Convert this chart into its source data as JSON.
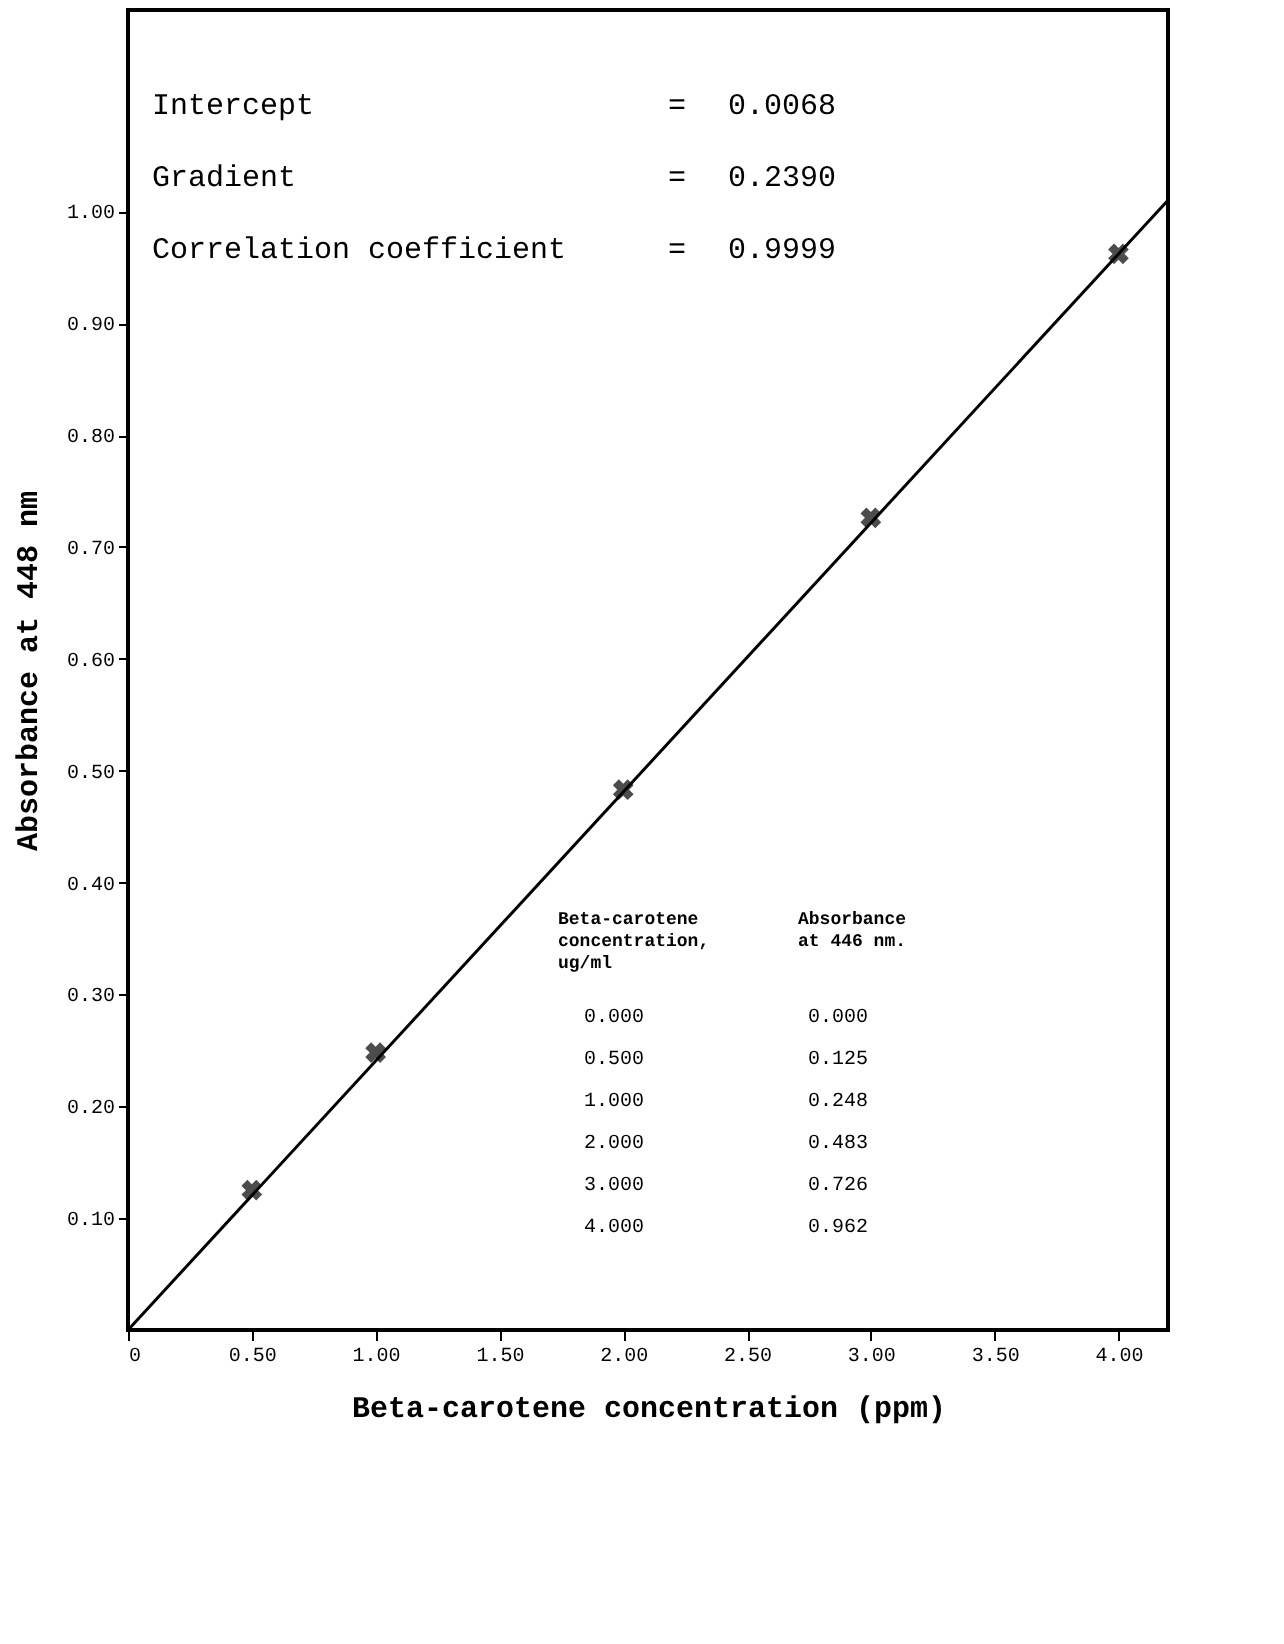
{
  "chart_data": {
    "type": "scatter",
    "xlabel": "Beta-carotene concentration (ppm)",
    "ylabel": "Absorbance at 448 nm",
    "xlim": [
      0,
      4.2
    ],
    "ylim": [
      0,
      1.18
    ],
    "xticks": [
      {
        "value": 0,
        "label": "0"
      },
      {
        "value": 0.5,
        "label": "0.50"
      },
      {
        "value": 1,
        "label": "1.00"
      },
      {
        "value": 1.5,
        "label": "1.50"
      },
      {
        "value": 2,
        "label": "2.00"
      },
      {
        "value": 2.5,
        "label": "2.50"
      },
      {
        "value": 3,
        "label": "3.00"
      },
      {
        "value": 3.5,
        "label": "3.50"
      },
      {
        "value": 4,
        "label": "4.00"
      }
    ],
    "yticks": [
      {
        "value": 0.1,
        "label": "0.10"
      },
      {
        "value": 0.2,
        "label": "0.20"
      },
      {
        "value": 0.3,
        "label": "0.30"
      },
      {
        "value": 0.4,
        "label": "0.40"
      },
      {
        "value": 0.5,
        "label": "0.50"
      },
      {
        "value": 0.6,
        "label": "0.60"
      },
      {
        "value": 0.7,
        "label": "0.70"
      },
      {
        "value": 0.8,
        "label": "0.80"
      },
      {
        "value": 0.9,
        "label": "0.90"
      },
      {
        "value": 1.0,
        "label": "1.00"
      }
    ],
    "grid": false,
    "series": [
      {
        "color": "#000000",
        "marker": "cross",
        "x": [
          0.5,
          1,
          2,
          3,
          4
        ],
        "values": [
          0.125,
          0.248,
          0.483,
          0.726,
          0.962
        ]
      },
      {
        "type": "line",
        "color": "#000000",
        "line_style": "solid",
        "marker": "none",
        "x": [
          0,
          4.2
        ],
        "values": [
          0,
          1.01
        ]
      }
    ],
    "annotations": [
      "Intercept",
      "=",
      "0.0068",
      "Gradient",
      "=",
      "0.2390",
      "Correlation coefficient",
      "=",
      "0.9999",
      "Beta-carotene\nconcentration,\nug/ml",
      "Absorbance\nat 446 nm.",
      "0.000",
      "0.000",
      "0.500",
      "0.125",
      "1.000",
      "0.248",
      "2.000",
      "0.483",
      "3.000",
      "0.726",
      "4.000",
      "0.962"
    ]
  }
}
